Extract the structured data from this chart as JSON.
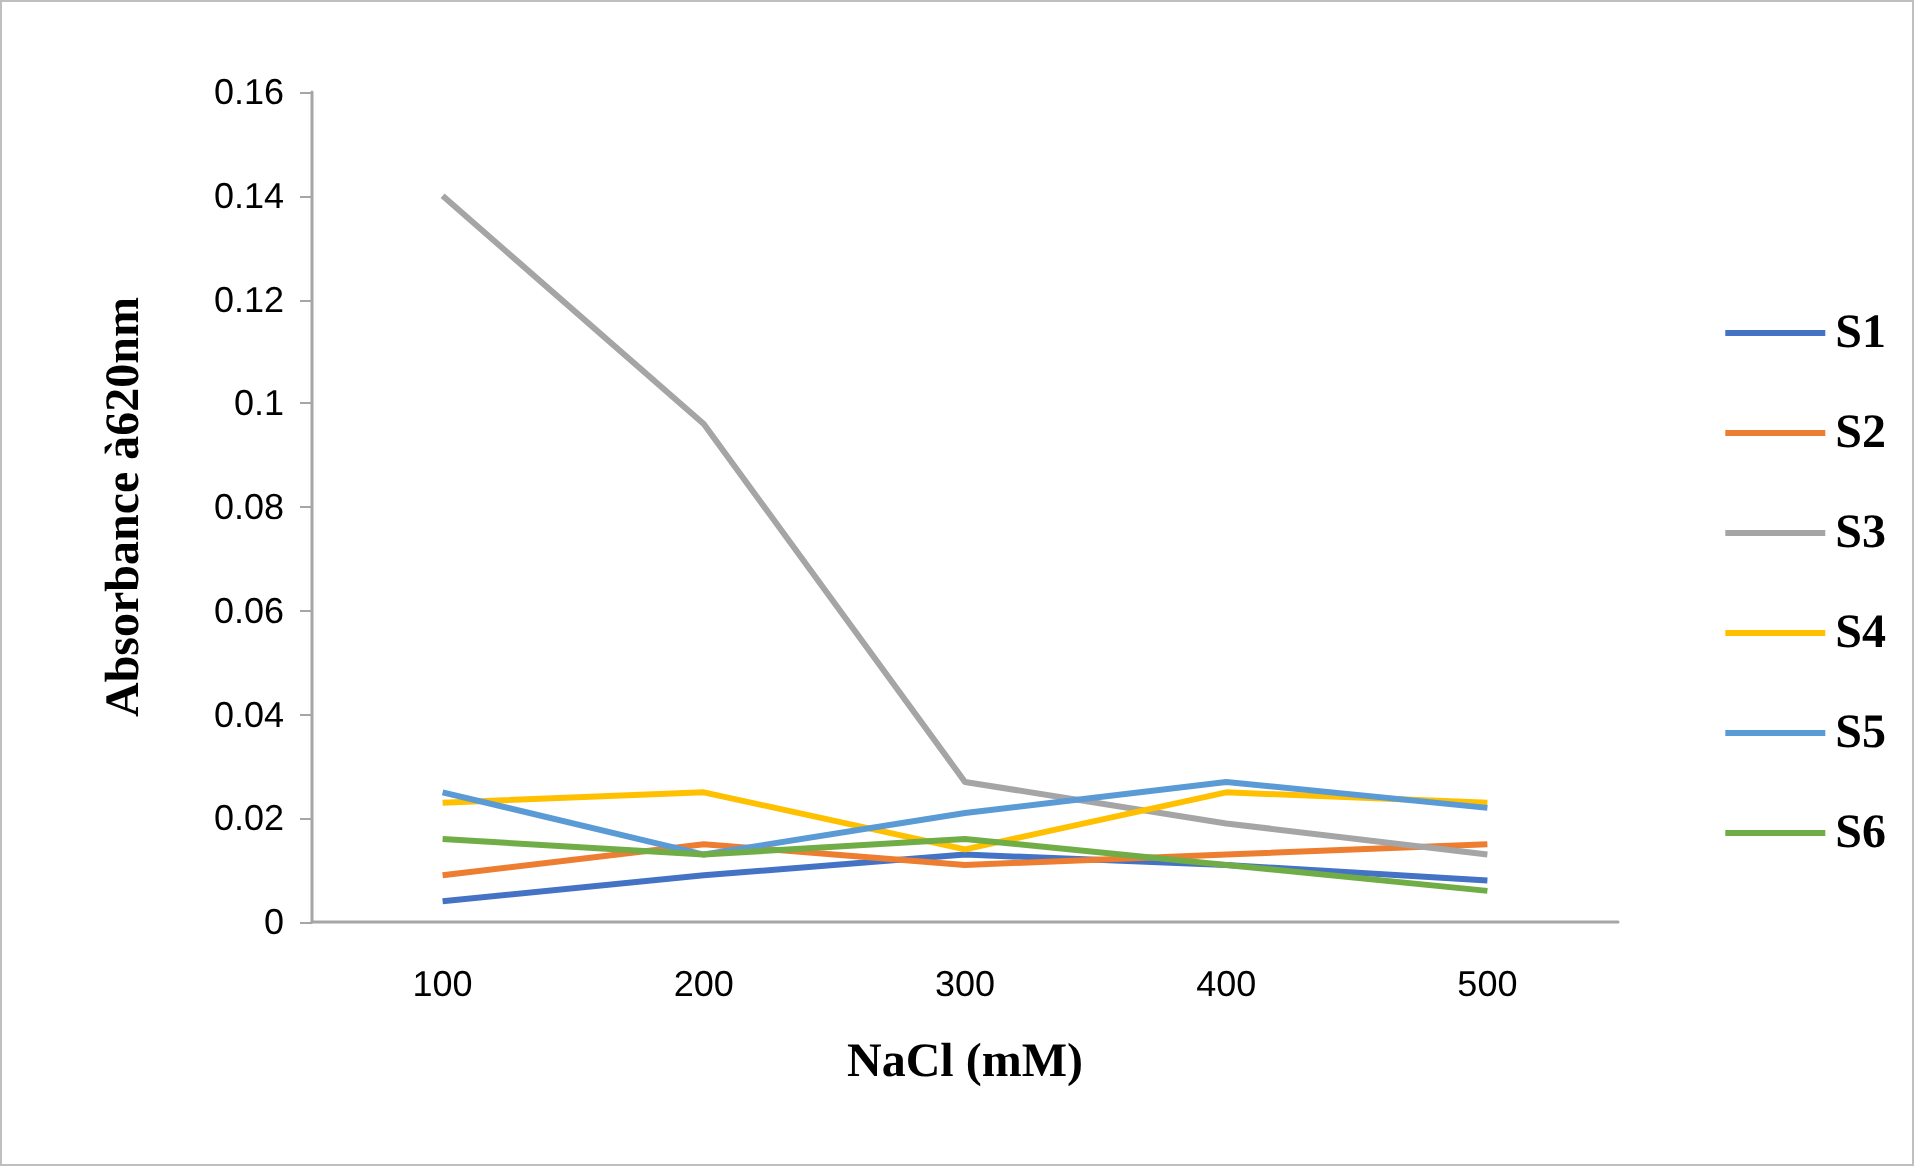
{
  "chart_data": {
    "type": "line",
    "xlabel": "NaCl (mM)",
    "ylabel": "Absorbance à620nm",
    "categories": [
      "100",
      "200",
      "300",
      "400",
      "500"
    ],
    "series": [
      {
        "name": "S1",
        "color": "#4472c4",
        "values": [
          0.004,
          0.009,
          0.013,
          0.011,
          0.008
        ]
      },
      {
        "name": "S2",
        "color": "#ed7d31",
        "values": [
          0.009,
          0.015,
          0.011,
          0.013,
          0.015
        ]
      },
      {
        "name": "S3",
        "color": "#a5a5a5",
        "values": [
          0.14,
          0.096,
          0.027,
          0.019,
          0.013
        ]
      },
      {
        "name": "S4",
        "color": "#ffc000",
        "values": [
          0.023,
          0.025,
          0.014,
          0.025,
          0.023
        ]
      },
      {
        "name": "S5",
        "color": "#5b9bd5",
        "values": [
          0.025,
          0.013,
          0.021,
          0.027,
          0.022
        ]
      },
      {
        "name": "S6",
        "color": "#70ad47",
        "values": [
          0.016,
          0.013,
          0.016,
          0.011,
          0.006
        ]
      }
    ],
    "ylim": [
      0,
      0.16
    ],
    "yticks": [
      0,
      0.02,
      0.04,
      0.06,
      0.08,
      0.1,
      0.12,
      0.14,
      0.16
    ],
    "grid": false,
    "legend": "right",
    "marker": "none",
    "line_style": "solid"
  }
}
